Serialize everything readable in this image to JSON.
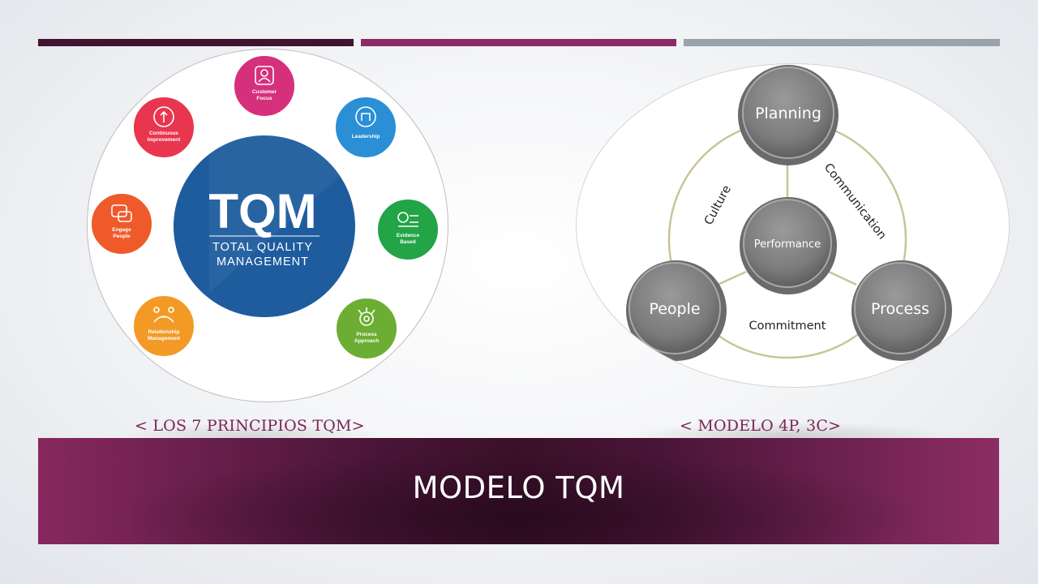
{
  "slide": {
    "title": "MODELO TQM",
    "caption_left": "< LOS 7 PRINCIPIOS TQM>",
    "caption_right": "< MODELO 4P, 3C>"
  },
  "tqm_diagram": {
    "center_title": "TQM",
    "center_subtitle_line1": "TOTAL QUALITY",
    "center_subtitle_line2": "MANAGEMENT",
    "principles": [
      {
        "label_lines": [
          "Customer",
          "Focus"
        ],
        "color": "#d6307c",
        "icon": "customer-focus-icon"
      },
      {
        "label_lines": [
          "Leadership"
        ],
        "color": "#2b8fd6",
        "icon": "leadership-icon"
      },
      {
        "label_lines": [
          "Evidence",
          "Based"
        ],
        "color": "#22a447",
        "icon": "evidence-based-icon"
      },
      {
        "label_lines": [
          "Process",
          "Approach"
        ],
        "color": "#6cae34",
        "icon": "process-approach-icon"
      },
      {
        "label_lines": [
          "Relationship",
          "Management"
        ],
        "color": "#f39a26",
        "icon": "relationship-management-icon"
      },
      {
        "label_lines": [
          "Engage",
          "People"
        ],
        "color": "#ef5a2b",
        "icon": "engage-people-icon"
      },
      {
        "label_lines": [
          "Continuous",
          "Improvement"
        ],
        "color": "#e8364e",
        "icon": "continuous-improvement-icon"
      }
    ],
    "colors": {
      "center": "#1e5c9e"
    }
  },
  "model_diagram": {
    "nodes": {
      "top": "Planning",
      "center": "Performance",
      "left": "People",
      "right": "Process"
    },
    "edges": {
      "left_arc": "Culture",
      "right_arc": "Communication",
      "bottom": "Commitment"
    },
    "colors": {
      "node": "#7f7f7f",
      "ring": "#c9c49a"
    }
  }
}
